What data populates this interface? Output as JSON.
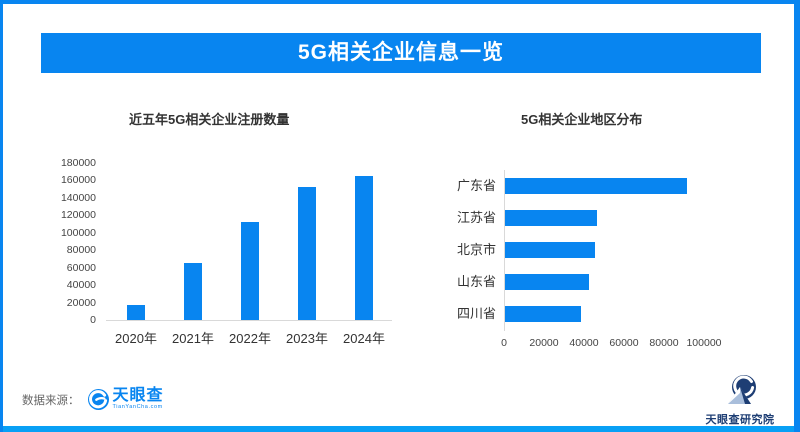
{
  "page": {
    "title": "5G相关企业信息一览"
  },
  "colors": {
    "accent": "#0885f0",
    "accent_light": "#09a0f5",
    "navy": "#1e3e74",
    "triangle_light": "#a9bedb",
    "axis_text": "#444444",
    "axis_line": "#d9d9d9",
    "source_text_gray": "#666666"
  },
  "footer": {
    "source_label": "数据来源：",
    "source_logo_text": "天眼查",
    "source_logo_subtext": "TianYanCha.com",
    "institute_logo_text": "天眼查研究院"
  },
  "chart_data": [
    {
      "type": "bar",
      "title": "近五年5G相关企业注册数量",
      "categories": [
        "2020年",
        "2021年",
        "2022年",
        "2023年",
        "2024年"
      ],
      "values": [
        17000,
        65000,
        112000,
        152000,
        165000
      ],
      "xlabel": "",
      "ylabel": "",
      "ylim": [
        0,
        180000
      ],
      "ytick_step": 20000,
      "grid": false,
      "legend": "none",
      "bar_color": "#0885f0"
    },
    {
      "type": "bar-horizontal",
      "title": "5G相关企业地区分布",
      "categories": [
        "广东省",
        "江苏省",
        "北京市",
        "山东省",
        "四川省"
      ],
      "values": [
        91000,
        46000,
        45000,
        42000,
        38000
      ],
      "xlabel": "",
      "ylabel": "",
      "xlim": [
        0,
        100000
      ],
      "xtick_step": 20000,
      "grid": false,
      "legend": "none",
      "bar_color": "#0885f0"
    }
  ]
}
